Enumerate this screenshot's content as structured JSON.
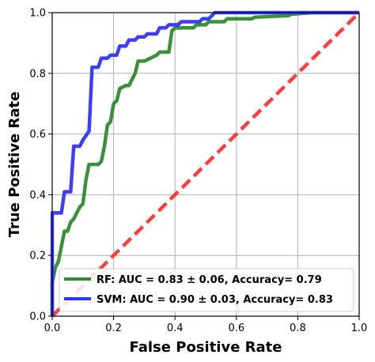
{
  "chart_data": {
    "type": "line",
    "title": "",
    "xlabel": "False Positive Rate",
    "ylabel": "True Positive Rate",
    "xlim": [
      0,
      1
    ],
    "ylim": [
      0,
      1
    ],
    "xticks": [
      "0.0",
      "0.2",
      "0.4",
      "0.6",
      "0.8",
      "1.0"
    ],
    "yticks": [
      "0.0",
      "0.2",
      "0.4",
      "0.6",
      "0.8",
      "1.0"
    ],
    "grid": true,
    "legend_position": "bottom-right",
    "series": [
      {
        "name": "RF: AUC = 0.83 ± 0.06, Accuracy= 0.79",
        "color": "#2e8b2e",
        "style": "solid",
        "points": [
          [
            0.0,
            0.0
          ],
          [
            0.0,
            0.11
          ],
          [
            0.01,
            0.16
          ],
          [
            0.02,
            0.18
          ],
          [
            0.03,
            0.23
          ],
          [
            0.04,
            0.28
          ],
          [
            0.05,
            0.28
          ],
          [
            0.06,
            0.31
          ],
          [
            0.07,
            0.32
          ],
          [
            0.08,
            0.34
          ],
          [
            0.09,
            0.36
          ],
          [
            0.1,
            0.37
          ],
          [
            0.11,
            0.45
          ],
          [
            0.12,
            0.5
          ],
          [
            0.15,
            0.5
          ],
          [
            0.16,
            0.51
          ],
          [
            0.17,
            0.56
          ],
          [
            0.18,
            0.63
          ],
          [
            0.19,
            0.64
          ],
          [
            0.2,
            0.7
          ],
          [
            0.21,
            0.71
          ],
          [
            0.22,
            0.75
          ],
          [
            0.24,
            0.76
          ],
          [
            0.25,
            0.76
          ],
          [
            0.26,
            0.78
          ],
          [
            0.27,
            0.8
          ],
          [
            0.28,
            0.84
          ],
          [
            0.3,
            0.84
          ],
          [
            0.32,
            0.85
          ],
          [
            0.34,
            0.86
          ],
          [
            0.35,
            0.87
          ],
          [
            0.38,
            0.87
          ],
          [
            0.39,
            0.94
          ],
          [
            0.4,
            0.95
          ],
          [
            0.46,
            0.95
          ],
          [
            0.47,
            0.96
          ],
          [
            0.5,
            0.96
          ],
          [
            0.51,
            0.97
          ],
          [
            0.56,
            0.97
          ],
          [
            0.57,
            0.98
          ],
          [
            0.65,
            0.98
          ],
          [
            0.66,
            0.985
          ],
          [
            0.77,
            0.99
          ],
          [
            0.78,
            0.995
          ],
          [
            0.85,
            1.0
          ],
          [
            1.0,
            1.0
          ]
        ]
      },
      {
        "name": "SVM: AUC = 0.90 ± 0.03, Accuracy= 0.83",
        "color": "#3333ff",
        "style": "solid",
        "points": [
          [
            0.0,
            0.0
          ],
          [
            0.0,
            0.34
          ],
          [
            0.03,
            0.34
          ],
          [
            0.04,
            0.41
          ],
          [
            0.06,
            0.41
          ],
          [
            0.07,
            0.56
          ],
          [
            0.09,
            0.56
          ],
          [
            0.1,
            0.58
          ],
          [
            0.12,
            0.61
          ],
          [
            0.13,
            0.82
          ],
          [
            0.15,
            0.82
          ],
          [
            0.16,
            0.85
          ],
          [
            0.18,
            0.85
          ],
          [
            0.19,
            0.86
          ],
          [
            0.21,
            0.86
          ],
          [
            0.22,
            0.89
          ],
          [
            0.24,
            0.89
          ],
          [
            0.25,
            0.91
          ],
          [
            0.27,
            0.91
          ],
          [
            0.28,
            0.92
          ],
          [
            0.3,
            0.92
          ],
          [
            0.31,
            0.93
          ],
          [
            0.34,
            0.93
          ],
          [
            0.35,
            0.95
          ],
          [
            0.37,
            0.95
          ],
          [
            0.38,
            0.96
          ],
          [
            0.41,
            0.96
          ],
          [
            0.42,
            0.97
          ],
          [
            0.48,
            0.97
          ],
          [
            0.49,
            0.98
          ],
          [
            0.51,
            0.98
          ],
          [
            0.52,
            0.99
          ],
          [
            0.53,
            1.0
          ],
          [
            1.0,
            1.0
          ]
        ]
      },
      {
        "name": "",
        "color": "#ff3333",
        "style": "dashed",
        "points": [
          [
            0.0,
            0.0
          ],
          [
            1.0,
            1.0
          ]
        ]
      }
    ]
  }
}
